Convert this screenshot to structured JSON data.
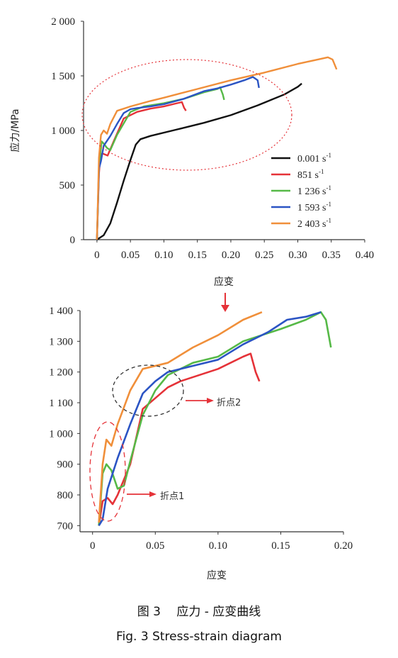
{
  "chart_data": [
    {
      "type": "line",
      "xlabel": "应变",
      "ylabel": "应力/MPa",
      "xlim": [
        -0.02,
        0.4
      ],
      "ylim": [
        0,
        2000
      ],
      "xticks": [
        "0",
        "0.05",
        "0.10",
        "0.15",
        "0.20",
        "0.25",
        "0.30",
        "0.35",
        "0.40"
      ],
      "yticks": [
        "0",
        "500",
        "1 000",
        "1 500",
        "2 000"
      ],
      "legend_position": "right",
      "series": [
        {
          "name": "0.001",
          "unit": "s",
          "exp": "-1",
          "color": "#111111",
          "points": [
            [
              0,
              0
            ],
            [
              0.01,
              40
            ],
            [
              0.02,
              150
            ],
            [
              0.03,
              340
            ],
            [
              0.04,
              540
            ],
            [
              0.05,
              730
            ],
            [
              0.058,
              870
            ],
            [
              0.065,
              920
            ],
            [
              0.08,
              950
            ],
            [
              0.12,
              1010
            ],
            [
              0.16,
              1070
            ],
            [
              0.2,
              1140
            ],
            [
              0.24,
              1230
            ],
            [
              0.28,
              1330
            ],
            [
              0.3,
              1400
            ],
            [
              0.306,
              1430
            ]
          ]
        },
        {
          "name": "851",
          "unit": "s",
          "exp": "-1",
          "color": "#e53238",
          "points": [
            [
              0,
              0
            ],
            [
              0.003,
              600
            ],
            [
              0.005,
              760
            ],
            [
              0.008,
              790
            ],
            [
              0.012,
              780
            ],
            [
              0.016,
              770
            ],
            [
              0.025,
              900
            ],
            [
              0.04,
              1110
            ],
            [
              0.06,
              1170
            ],
            [
              0.08,
              1200
            ],
            [
              0.1,
              1220
            ],
            [
              0.12,
              1250
            ],
            [
              0.127,
              1260
            ],
            [
              0.13,
              1210
            ],
            [
              0.133,
              1180
            ]
          ]
        },
        {
          "name": "1 236",
          "unit": "s",
          "exp": "-1",
          "color": "#56b947",
          "points": [
            [
              0,
              0
            ],
            [
              0.003,
              650
            ],
            [
              0.007,
              900
            ],
            [
              0.01,
              880
            ],
            [
              0.015,
              840
            ],
            [
              0.02,
              820
            ],
            [
              0.03,
              960
            ],
            [
              0.05,
              1170
            ],
            [
              0.07,
              1220
            ],
            [
              0.1,
              1250
            ],
            [
              0.13,
              1290
            ],
            [
              0.16,
              1350
            ],
            [
              0.18,
              1380
            ],
            [
              0.184,
              1395
            ],
            [
              0.188,
              1330
            ],
            [
              0.19,
              1280
            ]
          ]
        },
        {
          "name": "1 593",
          "unit": "s",
          "exp": "-1",
          "color": "#2b54c4",
          "points": [
            [
              0,
              0
            ],
            [
              0.003,
              650
            ],
            [
              0.006,
              720
            ],
            [
              0.01,
              860
            ],
            [
              0.02,
              950
            ],
            [
              0.03,
              1060
            ],
            [
              0.04,
              1160
            ],
            [
              0.05,
              1195
            ],
            [
              0.06,
              1205
            ],
            [
              0.08,
              1220
            ],
            [
              0.1,
              1240
            ],
            [
              0.13,
              1290
            ],
            [
              0.16,
              1360
            ],
            [
              0.18,
              1385
            ],
            [
              0.2,
              1420
            ],
            [
              0.22,
              1460
            ],
            [
              0.233,
              1490
            ],
            [
              0.24,
              1460
            ],
            [
              0.242,
              1390
            ]
          ]
        },
        {
          "name": "2 403",
          "unit": "s",
          "exp": "-1",
          "color": "#f08f3a",
          "points": [
            [
              0,
              0
            ],
            [
              0.003,
              750
            ],
            [
              0.006,
              960
            ],
            [
              0.01,
              1000
            ],
            [
              0.015,
              970
            ],
            [
              0.02,
              1060
            ],
            [
              0.03,
              1180
            ],
            [
              0.05,
              1220
            ],
            [
              0.08,
              1270
            ],
            [
              0.1,
              1300
            ],
            [
              0.15,
              1380
            ],
            [
              0.2,
              1460
            ],
            [
              0.25,
              1530
            ],
            [
              0.3,
              1610
            ],
            [
              0.33,
              1650
            ],
            [
              0.345,
              1670
            ],
            [
              0.352,
              1650
            ],
            [
              0.358,
              1560
            ]
          ]
        }
      ],
      "annotation": {
        "type": "ellipse",
        "color": "#e53238",
        "style": "dotted"
      }
    },
    {
      "type": "line",
      "xlabel": "应变",
      "xlim": [
        -0.01,
        0.2
      ],
      "ylim": [
        680,
        1400
      ],
      "xticks": [
        "0",
        "0.05",
        "0.10",
        "0.15",
        "0.20"
      ],
      "yticks": [
        "700",
        "800",
        "900",
        "1 000",
        "1 100",
        "1 200",
        "1 300",
        "1 400"
      ],
      "series": [
        {
          "color": "#e53238",
          "points": [
            [
              0.005,
              700
            ],
            [
              0.008,
              780
            ],
            [
              0.012,
              790
            ],
            [
              0.016,
              770
            ],
            [
              0.02,
              800
            ],
            [
              0.03,
              900
            ],
            [
              0.04,
              1080
            ],
            [
              0.06,
              1150
            ],
            [
              0.07,
              1170
            ],
            [
              0.1,
              1210
            ],
            [
              0.12,
              1250
            ],
            [
              0.126,
              1260
            ],
            [
              0.13,
              1200
            ],
            [
              0.133,
              1170
            ]
          ]
        },
        {
          "color": "#56b947",
          "points": [
            [
              0.005,
              700
            ],
            [
              0.008,
              870
            ],
            [
              0.011,
              900
            ],
            [
              0.015,
              880
            ],
            [
              0.02,
              820
            ],
            [
              0.025,
              830
            ],
            [
              0.03,
              910
            ],
            [
              0.04,
              1060
            ],
            [
              0.05,
              1140
            ],
            [
              0.06,
              1190
            ],
            [
              0.08,
              1230
            ],
            [
              0.1,
              1250
            ],
            [
              0.12,
              1300
            ],
            [
              0.15,
              1340
            ],
            [
              0.17,
              1370
            ],
            [
              0.182,
              1395
            ],
            [
              0.186,
              1370
            ],
            [
              0.19,
              1280
            ]
          ]
        },
        {
          "color": "#2b54c4",
          "points": [
            [
              0.005,
              700
            ],
            [
              0.008,
              720
            ],
            [
              0.012,
              820
            ],
            [
              0.02,
              920
            ],
            [
              0.03,
              1030
            ],
            [
              0.04,
              1130
            ],
            [
              0.05,
              1170
            ],
            [
              0.06,
              1200
            ],
            [
              0.08,
              1220
            ],
            [
              0.1,
              1240
            ],
            [
              0.12,
              1290
            ],
            [
              0.14,
              1330
            ],
            [
              0.155,
              1370
            ],
            [
              0.17,
              1380
            ],
            [
              0.182,
              1395
            ]
          ]
        },
        {
          "color": "#f08f3a",
          "points": [
            [
              0.005,
              710
            ],
            [
              0.008,
              900
            ],
            [
              0.011,
              980
            ],
            [
              0.015,
              960
            ],
            [
              0.02,
              1030
            ],
            [
              0.03,
              1140
            ],
            [
              0.04,
              1210
            ],
            [
              0.06,
              1230
            ],
            [
              0.08,
              1280
            ],
            [
              0.1,
              1320
            ],
            [
              0.12,
              1370
            ],
            [
              0.135,
              1395
            ]
          ]
        }
      ],
      "annotations": [
        {
          "label": "折点2",
          "color": "#333333",
          "style": "dashed"
        },
        {
          "label": "折点1",
          "color": "#e53238",
          "style": "dashed"
        }
      ]
    }
  ],
  "caption": {
    "cn": "图 3　 应力 - 应变曲线",
    "en": "Fig.  3  Stress-strain diagram"
  }
}
